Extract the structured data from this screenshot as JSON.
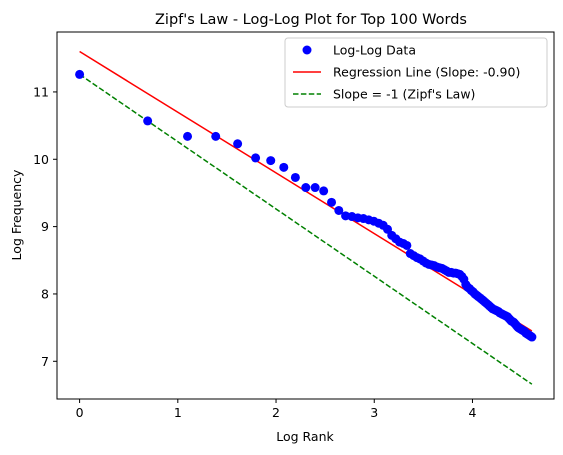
{
  "chart_data": {
    "type": "scatter",
    "title": "Zipf's Law - Log-Log Plot for Top 100 Words",
    "xlabel": "Log Rank",
    "ylabel": "Log Frequency",
    "xlim": [
      -0.23,
      4.83
    ],
    "ylim": [
      6.44,
      11.89
    ],
    "xticks": [
      "0",
      "1",
      "2",
      "3",
      "4"
    ],
    "yticks": [
      "7",
      "8",
      "9",
      "10",
      "11"
    ],
    "grid": false,
    "legend_position": "top-right",
    "colors": {
      "scatter": "#0000ff",
      "regression": "#ff0000",
      "reference": "#008000"
    },
    "series": [
      {
        "name": "Log-Log Data",
        "kind": "scatter",
        "x": [
          0,
          0.693,
          1.099,
          1.386,
          1.609,
          1.792,
          1.946,
          2.079,
          2.197,
          2.303,
          2.398,
          2.485,
          2.565,
          2.639,
          2.708,
          2.773,
          2.833,
          2.89,
          2.944,
          2.996,
          3.045,
          3.091,
          3.135,
          3.178,
          3.219,
          3.258,
          3.296,
          3.332,
          3.367,
          3.401,
          3.434,
          3.466,
          3.497,
          3.526,
          3.555,
          3.584,
          3.611,
          3.638,
          3.664,
          3.689,
          3.714,
          3.738,
          3.761,
          3.784,
          3.807,
          3.829,
          3.85,
          3.871,
          3.892,
          3.912,
          3.932,
          3.951,
          3.97,
          3.989,
          4.007,
          4.025,
          4.043,
          4.06,
          4.078,
          4.094,
          4.111,
          4.127,
          4.143,
          4.159,
          4.174,
          4.19,
          4.205,
          4.22,
          4.234,
          4.248,
          4.263,
          4.277,
          4.29,
          4.304,
          4.317,
          4.331,
          4.344,
          4.357,
          4.369,
          4.382,
          4.394,
          4.407,
          4.419,
          4.431,
          4.443,
          4.454,
          4.466,
          4.477,
          4.489,
          4.5,
          4.511,
          4.522,
          4.533,
          4.543,
          4.554,
          4.564,
          4.575,
          4.585,
          4.595,
          4.605
        ],
        "y": [
          11.26,
          10.57,
          10.34,
          10.34,
          10.23,
          10.02,
          9.98,
          9.88,
          9.73,
          9.58,
          9.58,
          9.53,
          9.36,
          9.24,
          9.16,
          9.15,
          9.13,
          9.12,
          9.1,
          9.08,
          9.05,
          9.02,
          8.96,
          8.87,
          8.82,
          8.77,
          8.75,
          8.72,
          8.6,
          8.57,
          8.54,
          8.52,
          8.49,
          8.46,
          8.44,
          8.43,
          8.42,
          8.4,
          8.39,
          8.38,
          8.36,
          8.34,
          8.32,
          8.32,
          8.31,
          8.31,
          8.3,
          8.29,
          8.26,
          8.22,
          8.14,
          8.1,
          8.08,
          8.05,
          8.03,
          8.0,
          7.98,
          7.96,
          7.94,
          7.92,
          7.9,
          7.88,
          7.86,
          7.84,
          7.82,
          7.8,
          7.78,
          7.77,
          7.76,
          7.75,
          7.74,
          7.72,
          7.71,
          7.7,
          7.69,
          7.68,
          7.67,
          7.66,
          7.64,
          7.62,
          7.6,
          7.59,
          7.58,
          7.56,
          7.54,
          7.52,
          7.5,
          7.49,
          7.48,
          7.47,
          7.46,
          7.45,
          7.44,
          7.42,
          7.41,
          7.4,
          7.39,
          7.38,
          7.37,
          7.36
        ]
      },
      {
        "name": "Regression Line (Slope: -0.90)",
        "kind": "line",
        "style": "solid",
        "x": [
          0,
          4.605
        ],
        "y": [
          11.6,
          7.45
        ]
      },
      {
        "name": "Slope = -1 (Zipf's Law)",
        "kind": "line",
        "style": "dashed",
        "x": [
          0,
          4.605
        ],
        "y": [
          11.26,
          6.66
        ]
      }
    ]
  }
}
